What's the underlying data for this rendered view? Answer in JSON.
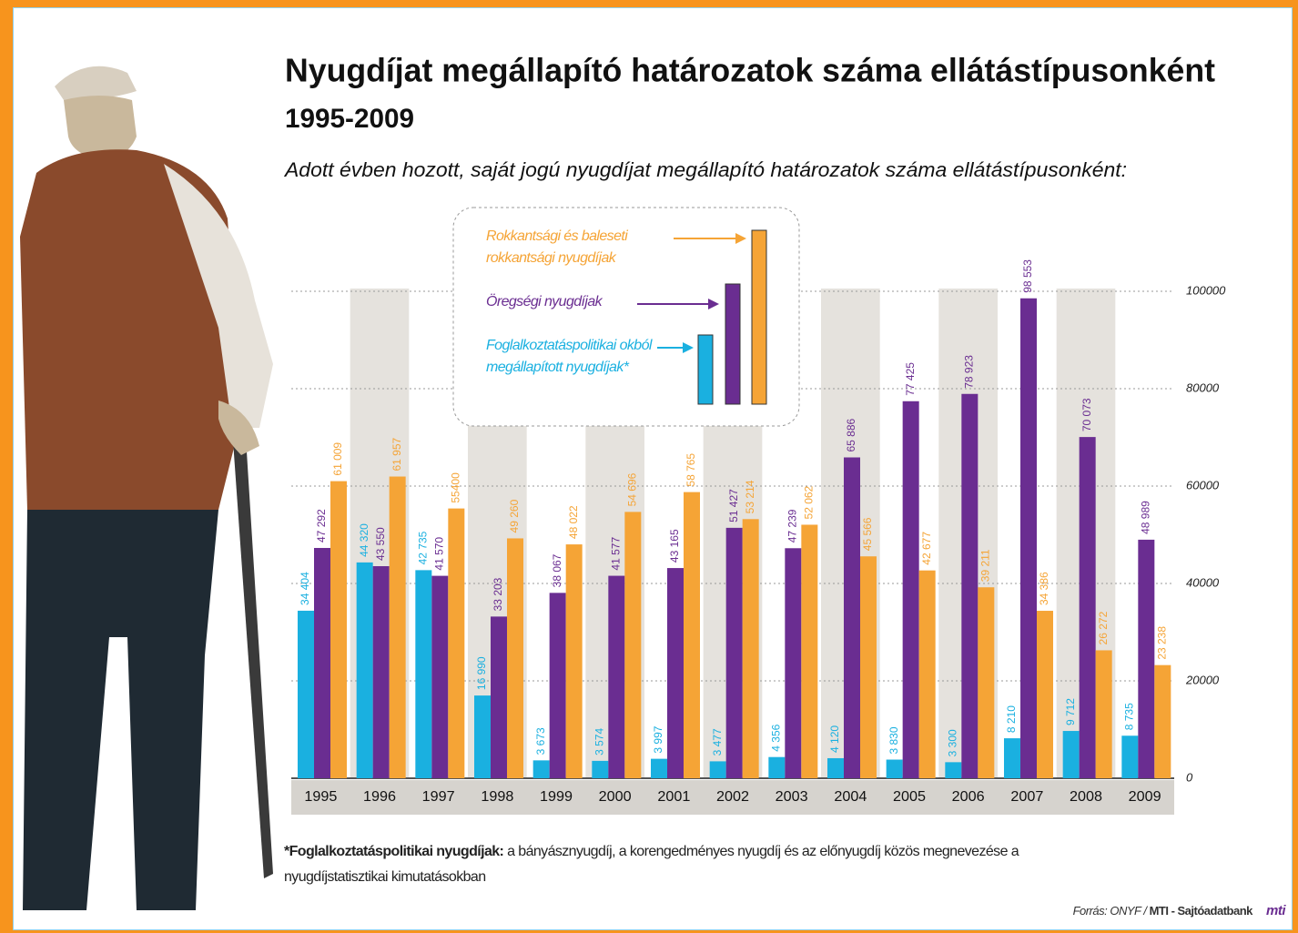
{
  "chart_data": {
    "type": "bar",
    "title": "Nyugdíjat megállapító határozatok száma ellátástípusonként",
    "subtitle": "1995-2009",
    "description": "Adott évben hozott, saját jogú nyugdíjat megállapító határozatok száma ellátástípusonként:",
    "categories": [
      "1995",
      "1996",
      "1997",
      "1998",
      "1999",
      "2000",
      "2001",
      "2002",
      "2003",
      "2004",
      "2005",
      "2006",
      "2007",
      "2008",
      "2009"
    ],
    "series": [
      {
        "name": "Foglalkoztatáspolitikai okból megállapított nyugdíjak*",
        "color": "#1ab0e0",
        "values": [
          34404,
          44320,
          42735,
          16990,
          3673,
          3574,
          3997,
          3477,
          4356,
          4120,
          3830,
          3300,
          8210,
          9712,
          8735
        ],
        "value_labels": [
          "34 404",
          "44 320",
          "42 735",
          "16 990",
          "3 673",
          "3 574",
          "3 997",
          "3 477",
          "4 356",
          "4 120",
          "3 830",
          "3 300",
          "8 210",
          "9 712",
          "8 735"
        ]
      },
      {
        "name": "Öregségi nyugdíjak",
        "color": "#6a2d91",
        "values": [
          47292,
          43550,
          41570,
          33203,
          38067,
          41577,
          43165,
          51427,
          47239,
          65886,
          77425,
          78923,
          98553,
          70073,
          48989
        ],
        "value_labels": [
          "47 292",
          "43 550",
          "41 570",
          "33 203",
          "38 067",
          "41 577",
          "43 165",
          "51 427",
          "47 239",
          "65 886",
          "77 425",
          "78 923",
          "98 553",
          "70 073",
          "48 989"
        ]
      },
      {
        "name": "Rokkantsági és baleseti rokkantsági nyugdíjak",
        "color": "#f5a436",
        "values": [
          61009,
          61957,
          55400,
          49260,
          48022,
          54696,
          58765,
          53214,
          52062,
          45566,
          42677,
          39211,
          34386,
          26272,
          23238
        ],
        "value_labels": [
          "61 009",
          "61 957",
          "55400",
          "49 260",
          "48 022",
          "54 696",
          "58 765",
          "53 214",
          "52 062",
          "45 566",
          "42 677",
          "39 211",
          "34 386",
          "26 272",
          "23 238"
        ]
      }
    ],
    "ylim": [
      0,
      100000
    ],
    "yticks": [
      0,
      20000,
      40000,
      60000,
      80000,
      100000
    ],
    "grid": true,
    "footnote_term": "*Foglalkoztatáspolitikai nyugdíjak:",
    "footnote_text": "a bányásznyugdíj, a korengedményes nyugdíj és az előnyugdíj közös megnevezése a nyugdíjstatisztikai kimutatásokban",
    "source": "Forrás: ONYF /",
    "source_agency": "MTI - Sajtóadatbank",
    "logo": "mti"
  }
}
